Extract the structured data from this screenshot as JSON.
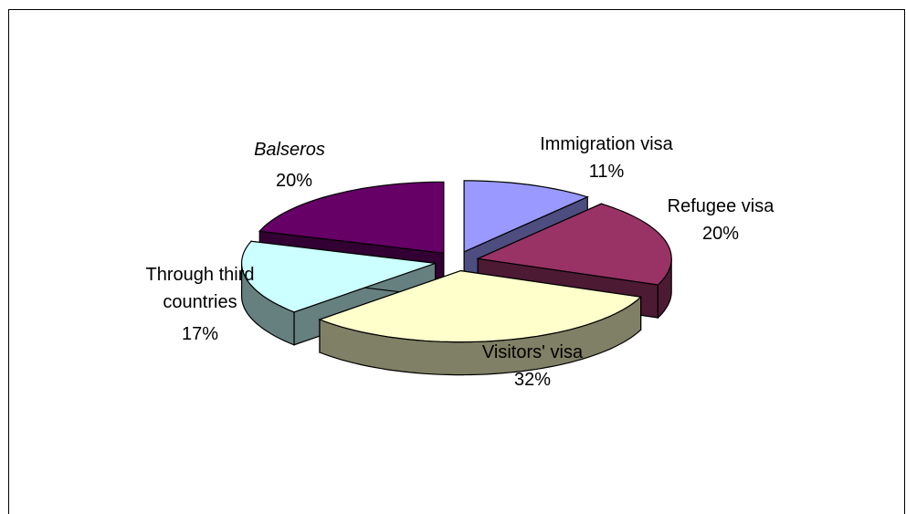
{
  "chart_data": {
    "type": "pie",
    "style": "3d-exploded",
    "title": "",
    "slices": [
      {
        "label": "Immigration visa",
        "value": 11,
        "display": "11%",
        "italic": false,
        "top_color": "#9999ff",
        "side_color": "#4d4d80"
      },
      {
        "label": "Refugee visa",
        "value": 20,
        "display": "20%",
        "italic": false,
        "top_color": "#993366",
        "side_color": "#4d1a33"
      },
      {
        "label": "Visitors' visa",
        "value": 32,
        "display": "32%",
        "italic": false,
        "top_color": "#ffffcc",
        "side_color": "#808066"
      },
      {
        "label": "Through third countries",
        "value": 17,
        "display": "17%",
        "italic": false,
        "top_color": "#ccffff",
        "side_color": "#668080"
      },
      {
        "label": "Balseros",
        "value": 20,
        "display": "20%",
        "italic": true,
        "top_color": "#660066",
        "side_color": "#330033"
      }
    ],
    "legend": "none"
  }
}
